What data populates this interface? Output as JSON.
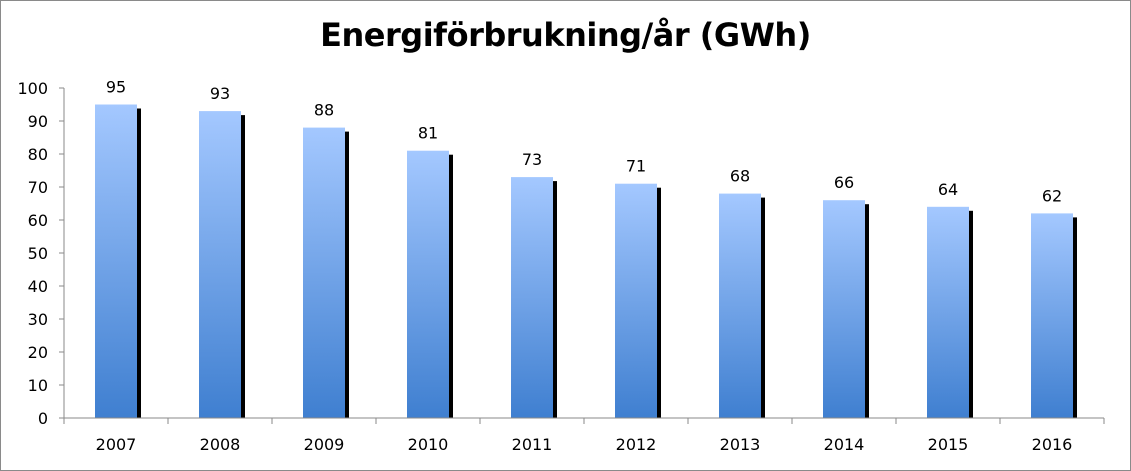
{
  "chart_data": {
    "type": "bar",
    "title": "Energiförbrukning/år (GWh)",
    "xlabel": "",
    "ylabel": "",
    "categories": [
      "2007",
      "2008",
      "2009",
      "2010",
      "2011",
      "2012",
      "2013",
      "2014",
      "2015",
      "2016"
    ],
    "series": [
      {
        "values": [
          95,
          93,
          88,
          81,
          73,
          71,
          68,
          66,
          64,
          62
        ]
      }
    ],
    "data_labels": [
      "95",
      "93",
      "88",
      "81",
      "73",
      "71",
      "68",
      "66",
      "64",
      "62"
    ],
    "ylim": [
      0,
      100
    ],
    "yticks": [
      0,
      10,
      20,
      30,
      40,
      50,
      60,
      70,
      80,
      90,
      100
    ],
    "ytick_labels": [
      "0",
      "10",
      "20",
      "30",
      "40",
      "50",
      "60",
      "70",
      "80",
      "90",
      "100"
    ],
    "grid": false,
    "legend": "none",
    "colors": {
      "bar_top": "#a4c8ff",
      "bar_bottom": "#3f7fd0",
      "bar_shadow": "#000000",
      "axis": "#8a8a8a"
    }
  }
}
